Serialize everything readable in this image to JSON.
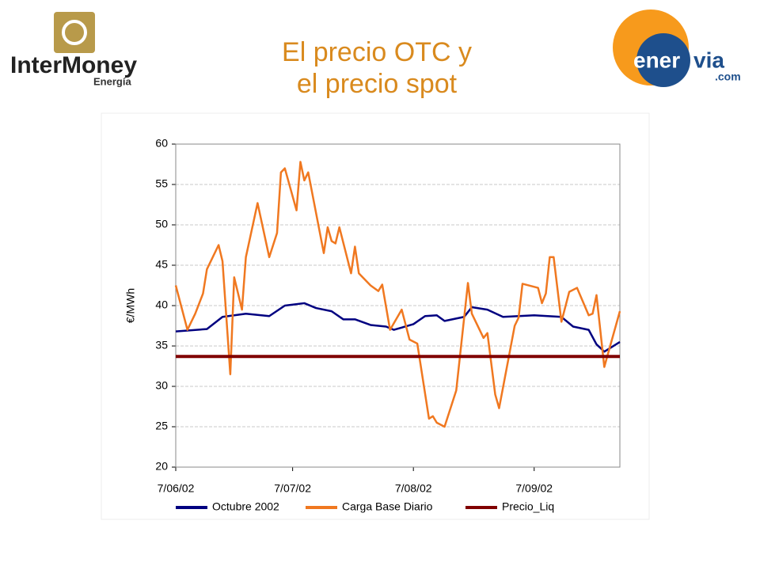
{
  "header": {
    "left_logo": "InterMoney",
    "left_logo_sub": "Energía",
    "right_logo_a": "ener",
    "right_logo_b": "via",
    "right_logo_c": ".com"
  },
  "chart_data": {
    "type": "line",
    "title": "El precio OTC y el precio spot",
    "ylabel": "€/MWh",
    "xlim": [
      "2002-06-07",
      "2002-09-29"
    ],
    "xticks": [
      {
        "value": "2002-06-07",
        "label": "7/06/02"
      },
      {
        "value": "2002-07-07",
        "label": "7/07/02"
      },
      {
        "value": "2002-08-07",
        "label": "7/08/02"
      },
      {
        "value": "2002-09-07",
        "label": "7/09/02"
      }
    ],
    "ylim": [
      20,
      60
    ],
    "yticks": [
      20,
      25,
      30,
      35,
      40,
      45,
      50,
      55,
      60
    ],
    "grid": true,
    "legend": "bottom",
    "series": [
      {
        "name": "Octubre 2002",
        "color": "#000080",
        "x": [
          "2002-06-07",
          "2002-06-15",
          "2002-06-19",
          "2002-06-25",
          "2002-07-01",
          "2002-07-05",
          "2002-07-10",
          "2002-07-13",
          "2002-07-17",
          "2002-07-20",
          "2002-07-23",
          "2002-07-27",
          "2002-07-31",
          "2002-08-02",
          "2002-08-07",
          "2002-08-10",
          "2002-08-13",
          "2002-08-15",
          "2002-08-20",
          "2002-08-22",
          "2002-08-26",
          "2002-08-30",
          "2002-09-07",
          "2002-09-14",
          "2002-09-17",
          "2002-09-21",
          "2002-09-23",
          "2002-09-25",
          "2002-09-29"
        ],
        "values": [
          36.8,
          37.1,
          38.6,
          39,
          38.7,
          40,
          40.3,
          39.7,
          39.3,
          38.3,
          38.3,
          37.6,
          37.4,
          37,
          37.7,
          38.7,
          38.8,
          38.1,
          38.6,
          39.8,
          39.5,
          38.6,
          38.8,
          38.6,
          37.4,
          37,
          35.2,
          34.3,
          35.5
        ]
      },
      {
        "name": "Carga Base Diario",
        "color": "#f07820",
        "x": [
          "2002-06-07",
          "2002-06-10",
          "2002-06-12",
          "2002-06-14",
          "2002-06-15",
          "2002-06-18",
          "2002-06-19",
          "2002-06-21",
          "2002-06-22",
          "2002-06-24",
          "2002-06-25",
          "2002-06-28",
          "2002-07-01",
          "2002-07-03",
          "2002-07-04",
          "2002-07-05",
          "2002-07-08",
          "2002-07-09",
          "2002-07-10",
          "2002-07-11",
          "2002-07-15",
          "2002-07-16",
          "2002-07-17",
          "2002-07-18",
          "2002-07-19",
          "2002-07-22",
          "2002-07-23",
          "2002-07-24",
          "2002-07-27",
          "2002-07-29",
          "2002-07-30",
          "2002-08-01",
          "2002-08-04",
          "2002-08-06",
          "2002-08-08",
          "2002-08-11",
          "2002-08-12",
          "2002-08-13",
          "2002-08-15",
          "2002-08-18",
          "2002-08-21",
          "2002-08-22",
          "2002-08-25",
          "2002-08-26",
          "2002-08-28",
          "2002-08-29",
          "2002-09-02",
          "2002-09-03",
          "2002-09-04",
          "2002-09-08",
          "2002-09-09",
          "2002-09-10",
          "2002-09-11",
          "2002-09-12",
          "2002-09-14",
          "2002-09-16",
          "2002-09-18",
          "2002-09-21",
          "2002-09-22",
          "2002-09-23",
          "2002-09-25",
          "2002-09-29"
        ],
        "values": [
          42.5,
          37,
          39,
          41.5,
          44.5,
          47.5,
          45.5,
          31.5,
          43.5,
          39.5,
          46,
          52.7,
          46,
          49,
          56.5,
          57,
          51.8,
          57.8,
          55.5,
          56.5,
          46.5,
          49.7,
          48,
          47.7,
          49.7,
          44,
          47.3,
          44,
          42.5,
          41.8,
          42.6,
          37,
          39.5,
          35.8,
          35.3,
          26,
          26.3,
          25.5,
          25,
          29.5,
          42.8,
          39,
          36,
          36.6,
          29,
          27.3,
          37.5,
          38.5,
          42.7,
          42.2,
          40.3,
          41.5,
          46,
          46,
          38,
          41.7,
          42.2,
          38.8,
          39,
          41.3,
          32.4,
          39.3
        ]
      },
      {
        "name": "Precio_Liq",
        "color": "#800000",
        "x": [
          "2002-06-07",
          "2002-09-29"
        ],
        "values": [
          33.7,
          33.7
        ]
      }
    ]
  }
}
